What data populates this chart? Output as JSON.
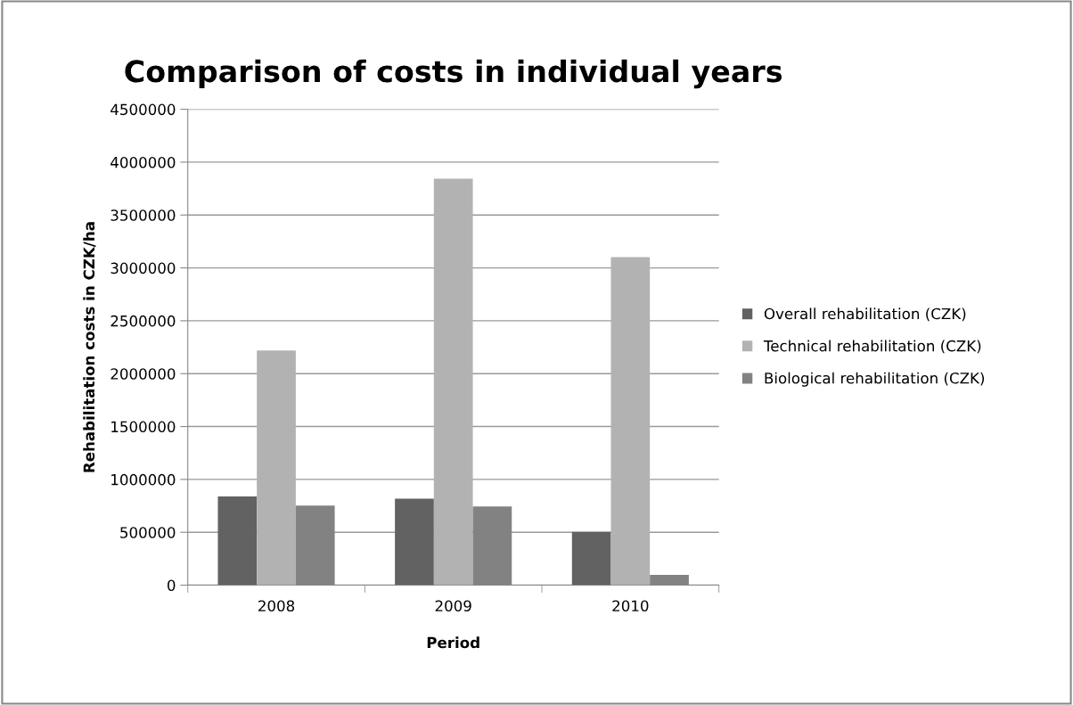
{
  "chart_data": {
    "type": "bar",
    "title": "Comparison of costs in individual years",
    "xlabel": "Period",
    "ylabel": "Rehabilitation costs in CZK/ha",
    "categories": [
      "2008",
      "2009",
      "2010"
    ],
    "series": [
      {
        "name": "Overall rehabilitation (CZK)",
        "color": "#626262",
        "values": [
          838000,
          818000,
          503000
        ]
      },
      {
        "name": "Technical rehabilitation (CZK)",
        "color": "#b2b2b2",
        "values": [
          2218000,
          3843000,
          3101000
        ]
      },
      {
        "name": "Biological rehabilitation (CZK)",
        "color": "#828282",
        "values": [
          753000,
          744000,
          97000
        ]
      }
    ],
    "ylim": [
      0,
      4500000
    ],
    "yticks": [
      0,
      500000,
      1000000,
      1500000,
      2000000,
      2500000,
      3000000,
      3500000,
      4000000,
      4500000
    ],
    "grid": "y",
    "legend": "right"
  }
}
